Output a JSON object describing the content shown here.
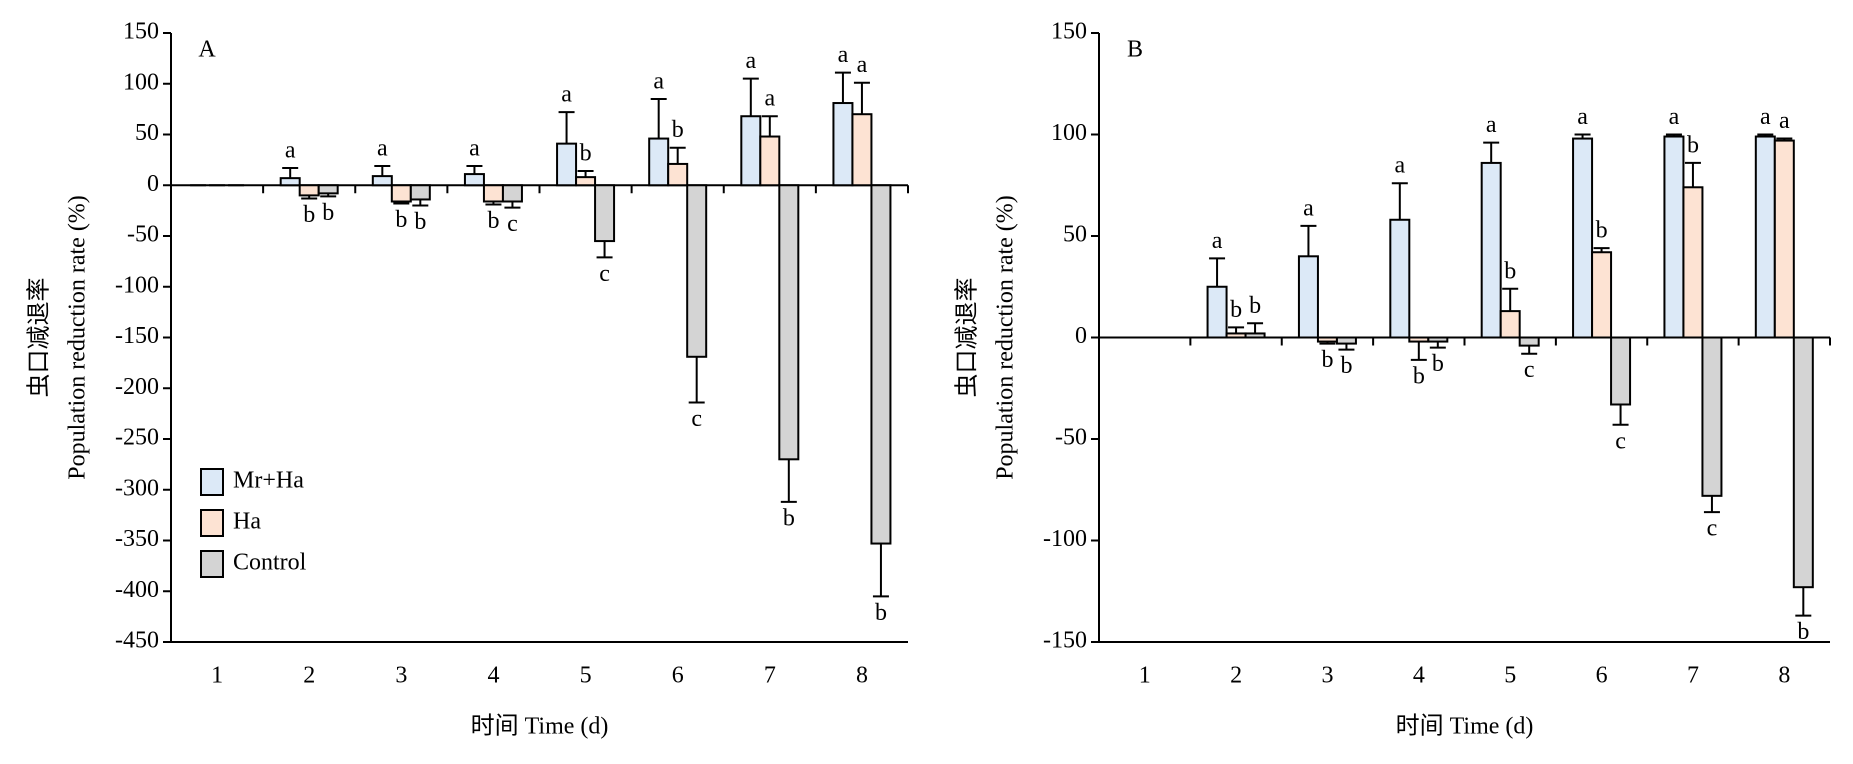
{
  "chart_data": [
    {
      "type": "bar",
      "panel_label": "A",
      "x_label": "时间 Time (d)",
      "y_label": [
        "虫口减退率",
        "Population reduction rate (%)"
      ],
      "categories": [
        "1",
        "2",
        "3",
        "4",
        "5",
        "6",
        "7",
        "8"
      ],
      "ylim": [
        -450,
        150
      ],
      "yticks": [
        -450,
        -400,
        -350,
        -300,
        -250,
        -200,
        -150,
        -100,
        -50,
        0,
        50,
        100,
        150
      ],
      "legend": "lower left",
      "series": [
        {
          "name": "Mr+Ha",
          "color": "#dce9f7",
          "values": [
            0,
            7,
            9,
            11,
            41,
            46,
            68,
            81
          ],
          "errors": [
            0,
            10,
            10,
            8,
            31,
            39,
            37,
            30
          ],
          "labels": [
            null,
            "a",
            "a",
            "a",
            "a",
            "a",
            "a",
            "a"
          ]
        },
        {
          "name": "Ha",
          "color": "#fde3d3",
          "values": [
            0,
            -10,
            -16,
            -16,
            8,
            21,
            48,
            70
          ],
          "errors": [
            0,
            3,
            2,
            3,
            6,
            16,
            20,
            31
          ],
          "labels": [
            null,
            "b",
            "b",
            "b",
            "b",
            "b",
            "a",
            "a"
          ]
        },
        {
          "name": "Control",
          "color": "#d4d4d4",
          "values": [
            0,
            -8,
            -14,
            -16,
            -55,
            -169,
            -270,
            -353
          ],
          "errors": [
            0,
            3,
            6,
            6,
            16,
            45,
            42,
            52
          ],
          "labels": [
            null,
            "b",
            "b",
            "c",
            "c",
            "c",
            "b",
            "b"
          ]
        }
      ]
    },
    {
      "type": "bar",
      "panel_label": "B",
      "x_label": "时间 Time (d)",
      "y_label": [
        "虫口减退率",
        "Population reduction rate (%)"
      ],
      "categories": [
        "1",
        "2",
        "3",
        "4",
        "5",
        "6",
        "7",
        "8"
      ],
      "ylim": [
        -150,
        150
      ],
      "yticks": [
        -150,
        -100,
        -50,
        0,
        50,
        100,
        150
      ],
      "series": [
        {
          "color": "#dce9f7",
          "values": [
            0,
            25,
            40,
            58,
            86,
            98,
            99,
            99
          ],
          "errors": [
            0,
            14,
            15,
            18,
            10,
            2,
            1,
            1
          ],
          "labels": [
            null,
            "a",
            "a",
            "a",
            "a",
            "a",
            "a",
            "a"
          ]
        },
        {
          "color": "#fde3d3",
          "values": [
            0,
            2,
            -2,
            -2,
            13,
            42,
            74,
            97
          ],
          "errors": [
            0,
            3,
            1,
            9,
            11,
            2,
            12,
            1
          ],
          "labels": [
            null,
            "b",
            "b",
            "b",
            "b",
            "b",
            "b",
            "a"
          ]
        },
        {
          "color": "#d4d4d4",
          "values": [
            0,
            2,
            -3,
            -2,
            -4,
            -33,
            -78,
            -123
          ],
          "errors": [
            0,
            5,
            3,
            3,
            4,
            10,
            8,
            14
          ],
          "labels": [
            null,
            "b",
            "b",
            "b",
            "c",
            "c",
            "c",
            "b"
          ]
        }
      ]
    }
  ]
}
